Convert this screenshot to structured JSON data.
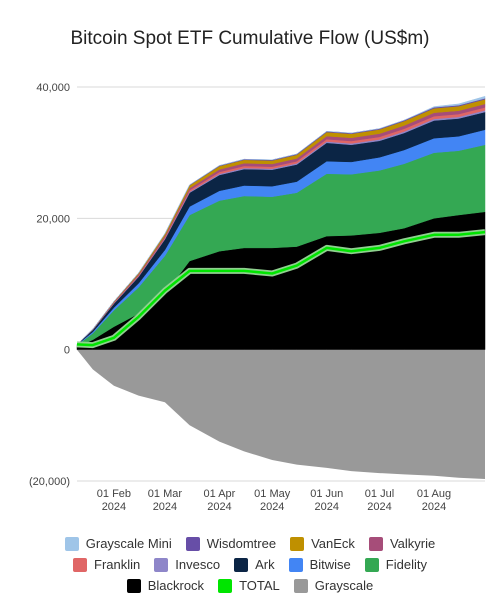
{
  "chart_data": {
    "type": "area",
    "title": "Bitcoin Spot ETF Cumulative Flow (US$m)",
    "xlabel": "",
    "ylabel": "",
    "ylim": [
      -20000,
      40000
    ],
    "yticks": [
      40000,
      20000,
      0,
      -20000
    ],
    "ytick_labels": [
      "40,000",
      "20,000",
      "0",
      "(20,000)"
    ],
    "xticks": [
      {
        "date": "2024-02-01",
        "line1": "01 Feb",
        "line2": "2024"
      },
      {
        "date": "2024-03-01",
        "line1": "01 Mar",
        "line2": "2024"
      },
      {
        "date": "2024-04-01",
        "line1": "01 Apr",
        "line2": "2024"
      },
      {
        "date": "2024-05-01",
        "line1": "01 May",
        "line2": "2024"
      },
      {
        "date": "2024-06-01",
        "line1": "01 Jun",
        "line2": "2024"
      },
      {
        "date": "2024-07-01",
        "line1": "01 Jul",
        "line2": "2024"
      },
      {
        "date": "2024-08-01",
        "line1": "01 Aug",
        "line2": "2024"
      }
    ],
    "grid": true,
    "legend_position": "bottom",
    "x": [
      "2024-01-11",
      "2024-01-20",
      "2024-02-01",
      "2024-02-15",
      "2024-03-01",
      "2024-03-15",
      "2024-04-01",
      "2024-04-15",
      "2024-05-01",
      "2024-05-15",
      "2024-06-01",
      "2024-06-15",
      "2024-07-01",
      "2024-07-15",
      "2024-08-01",
      "2024-08-15",
      "2024-08-30"
    ],
    "series": [
      {
        "name": "Blackrock",
        "color": "#000000",
        "values": [
          400,
          1500,
          3500,
          5500,
          8500,
          13500,
          15000,
          15500,
          15500,
          15700,
          17300,
          17400,
          17800,
          18500,
          20000,
          20500,
          21000
        ]
      },
      {
        "name": "Fidelity",
        "color": "#34a853",
        "values": [
          300,
          1000,
          2500,
          4000,
          5800,
          7000,
          7700,
          7900,
          7800,
          8200,
          9500,
          9300,
          9500,
          9800,
          10000,
          9800,
          10200
        ]
      },
      {
        "name": "Bitwise",
        "color": "#4285f4",
        "values": [
          50,
          200,
          400,
          600,
          900,
          1300,
          1500,
          1600,
          1600,
          1700,
          1900,
          1900,
          2000,
          2100,
          2200,
          2200,
          2300
        ]
      },
      {
        "name": "Ark",
        "color": "#0b2545",
        "values": [
          50,
          300,
          600,
          1000,
          1600,
          2100,
          2400,
          2500,
          2500,
          2600,
          2800,
          2600,
          2500,
          2600,
          2700,
          2700,
          2700
        ]
      },
      {
        "name": "Invesco",
        "color": "#8e86c9",
        "values": [
          0,
          20,
          60,
          80,
          100,
          140,
          160,
          170,
          170,
          180,
          200,
          210,
          220,
          230,
          240,
          240,
          250
        ]
      },
      {
        "name": "Franklin",
        "color": "#e06666",
        "values": [
          0,
          30,
          80,
          130,
          180,
          240,
          290,
          300,
          300,
          310,
          350,
          360,
          380,
          400,
          420,
          430,
          440
        ]
      },
      {
        "name": "Valkyrie",
        "color": "#a64d79",
        "values": [
          0,
          40,
          100,
          180,
          250,
          330,
          400,
          420,
          420,
          440,
          480,
          490,
          500,
          510,
          520,
          520,
          530
        ]
      },
      {
        "name": "VanEck",
        "color": "#bf9000",
        "values": [
          0,
          30,
          100,
          180,
          300,
          420,
          500,
          520,
          520,
          550,
          600,
          620,
          640,
          660,
          680,
          690,
          700
        ]
      },
      {
        "name": "Wisdomtree",
        "color": "#674ea7",
        "values": [
          0,
          5,
          10,
          20,
          30,
          60,
          90,
          100,
          100,
          110,
          120,
          120,
          130,
          140,
          150,
          150,
          160
        ]
      },
      {
        "name": "Grayscale Mini",
        "color": "#9fc5e8",
        "values": [
          0,
          0,
          0,
          0,
          0,
          0,
          0,
          0,
          0,
          0,
          0,
          0,
          0,
          0,
          100,
          200,
          300
        ]
      },
      {
        "name": "Grayscale",
        "color": "#999999",
        "values": [
          0,
          -3000,
          -5500,
          -7000,
          -8000,
          -11500,
          -14000,
          -15500,
          -16800,
          -17500,
          -18000,
          -18500,
          -18800,
          -19000,
          -19200,
          -19500,
          -19700
        ]
      }
    ],
    "total_line": {
      "name": "TOTAL",
      "color": "#00e500",
      "values": [
        800,
        700,
        1800,
        5000,
        9000,
        12000,
        12000,
        12000,
        11600,
        12800,
        15500,
        15000,
        15500,
        16500,
        17500,
        17500,
        17900
      ]
    }
  },
  "legend": {
    "rows": [
      [
        {
          "label": "Grayscale Mini",
          "color": "#9fc5e8"
        },
        {
          "label": "Wisdomtree",
          "color": "#674ea7"
        },
        {
          "label": "VanEck",
          "color": "#bf9000"
        },
        {
          "label": "Valkyrie",
          "color": "#a64d79"
        }
      ],
      [
        {
          "label": "Franklin",
          "color": "#e06666"
        },
        {
          "label": "Invesco",
          "color": "#8e86c9"
        },
        {
          "label": "Ark",
          "color": "#0b2545"
        },
        {
          "label": "Bitwise",
          "color": "#4285f4"
        },
        {
          "label": "Fidelity",
          "color": "#34a853"
        }
      ],
      [
        {
          "label": "Blackrock",
          "color": "#000000"
        },
        {
          "label": "TOTAL",
          "color": "#00e500"
        },
        {
          "label": "Grayscale",
          "color": "#999999"
        }
      ]
    ]
  }
}
